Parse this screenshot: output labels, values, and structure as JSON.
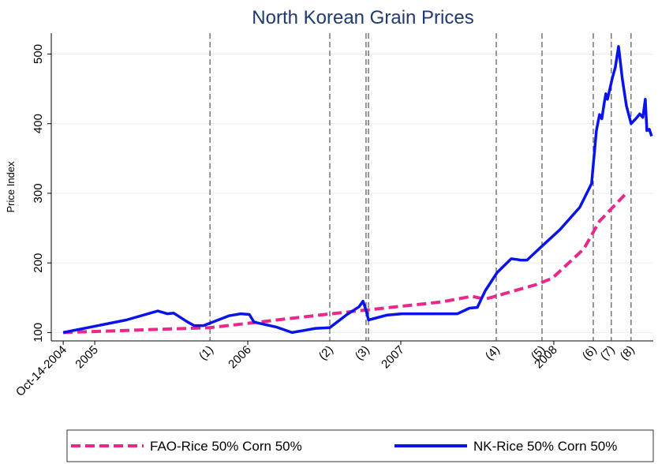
{
  "chart_data": {
    "type": "line",
    "title": "North Korean Grain Prices",
    "y_label": "Price Index",
    "xlim": [
      2004.716,
      2008.65
    ],
    "ylim": [
      88,
      530
    ],
    "yticks": [
      100,
      200,
      300,
      400,
      500
    ],
    "xticks": [
      {
        "value": 2004.794,
        "label": "Oct-14-2004"
      },
      {
        "value": 2005,
        "label": "2005"
      },
      {
        "value": 2006,
        "label": "2006"
      },
      {
        "value": 2007,
        "label": "2007"
      },
      {
        "value": 2008,
        "label": "2008"
      }
    ],
    "grid": true,
    "legend": "bottom",
    "events": [
      {
        "label": "(1)",
        "x": [
          2005.753
        ]
      },
      {
        "label": "(2)",
        "x": [
          2006.536
        ]
      },
      {
        "label": "(3)",
        "x": [
          2006.773,
          2006.789
        ]
      },
      {
        "label": "(4)",
        "x": [
          2007.624
        ]
      },
      {
        "label": "(5)",
        "x": [
          2007.923
        ]
      },
      {
        "label": "(6)",
        "x": [
          2008.258
        ]
      },
      {
        "label": "(7)",
        "x": [
          2008.376
        ]
      },
      {
        "label": "(8)",
        "x": [
          2008.505
        ]
      }
    ],
    "series": [
      {
        "name": "FAO-Rice 50% Corn 50%",
        "color": "#e8288a",
        "dash": true,
        "x": [
          2004.794,
          2005.753,
          2006.546,
          2007.268,
          2007.464,
          2007.552,
          2007.887,
          2007.99,
          2008.196,
          2008.299,
          2008.469
        ],
        "values": [
          100,
          107,
          127,
          144,
          152,
          148,
          169,
          178,
          220,
          260,
          299
        ]
      },
      {
        "name": "NK-Rice 50% Corn 50%",
        "color": "#0a14e6",
        "dash": false,
        "x": [
          2004.794,
          2005.206,
          2005.412,
          2005.474,
          2005.515,
          2005.608,
          2005.649,
          2005.711,
          2005.876,
          2005.954,
          2006.01,
          2006.041,
          2006.186,
          2006.289,
          2006.443,
          2006.536,
          2006.649,
          2006.727,
          2006.753,
          2006.773,
          2006.789,
          2006.907,
          2007.01,
          2007.371,
          2007.448,
          2007.5,
          2007.552,
          2007.629,
          2007.722,
          2007.758,
          2007.784,
          2007.825,
          2007.912,
          2008.041,
          2008.17,
          2008.247,
          2008.278,
          2008.299,
          2008.314,
          2008.33,
          2008.34,
          2008.351,
          2008.381,
          2008.402,
          2008.423,
          2008.448,
          2008.474,
          2008.505,
          2008.536,
          2008.562,
          2008.582,
          2008.598,
          2008.608,
          2008.624,
          2008.639
        ],
        "values": [
          100,
          118,
          131,
          127,
          128,
          115,
          110,
          110,
          124,
          127,
          126,
          115,
          108,
          100,
          106,
          107,
          126,
          137,
          145,
          132,
          118,
          125,
          127,
          127,
          135,
          136,
          160,
          186,
          206,
          205,
          204,
          204,
          222,
          248,
          280,
          314,
          390,
          413,
          407,
          430,
          443,
          435,
          464,
          481,
          511,
          464,
          426,
          400,
          407,
          414,
          409,
          435,
          390,
          392,
          382
        ]
      }
    ]
  }
}
